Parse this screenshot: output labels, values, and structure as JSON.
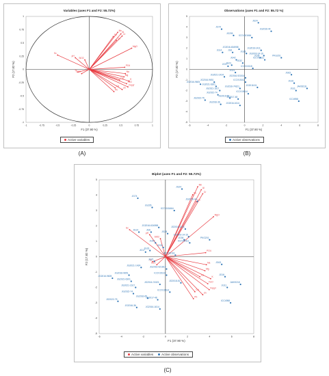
{
  "captions": [
    "(A)",
    "(B)",
    "(C)"
  ],
  "legend": {
    "active_variables": "Active variables",
    "active_observations": "Active observations"
  },
  "colors": {
    "variables": "#e8393f",
    "observations": "#2e75b6",
    "axis": "#333333",
    "circle": "#333333"
  },
  "chart_data": [
    {
      "type": "scatter",
      "panel": "A",
      "title": "Variables (axes F1 and F2: 55.72%)",
      "xlabel": "F1 (37.90 %)",
      "ylabel": "F2 (17.82 %)",
      "xlim": [
        -1,
        1
      ],
      "ylim": [
        -1,
        1
      ],
      "xticks": [
        "-1",
        "-0.75",
        "-0.5",
        "-0.25",
        "0",
        "0.25",
        "0.5",
        "0.75",
        "1"
      ],
      "yticks": [
        "1",
        "0.75",
        "0.5",
        "0.25",
        "0",
        "-0.25",
        "-0.5",
        "-0.75",
        "-1"
      ],
      "correlation_circle": true,
      "vectors": [
        {
          "name": "Sc",
          "x": -0.5,
          "y": 0.27
        },
        {
          "name": "pH",
          "x": -0.22,
          "y": 0.22
        },
        {
          "name": "Fe",
          "x": 0.38,
          "y": 0.62
        },
        {
          "name": "Mn",
          "x": 0.45,
          "y": 0.7
        },
        {
          "name": "Al",
          "x": 0.5,
          "y": 0.67
        },
        {
          "name": "Cr",
          "x": 0.52,
          "y": 0.63
        },
        {
          "name": "Cu",
          "x": 0.43,
          "y": 0.55
        },
        {
          "name": "MgO",
          "x": 0.67,
          "y": 0.4
        },
        {
          "name": "SiO2",
          "x": -0.07,
          "y": 0.18
        },
        {
          "name": "Si",
          "x": -0.18,
          "y": -0.05
        },
        {
          "name": "CEC",
          "x": -0.12,
          "y": -0.08
        },
        {
          "name": "PO4",
          "x": 0.56,
          "y": 0.04
        },
        {
          "name": "Na",
          "x": 0.57,
          "y": -0.08
        },
        {
          "name": "Mg",
          "x": 0.55,
          "y": -0.14
        },
        {
          "name": "Ca",
          "x": 0.48,
          "y": -0.2
        },
        {
          "name": "K",
          "x": 0.63,
          "y": -0.22
        },
        {
          "name": "FeO",
          "x": 0.59,
          "y": -0.27
        },
        {
          "name": "Fepyr",
          "x": 0.61,
          "y": -0.33
        },
        {
          "name": "Zn",
          "x": 0.52,
          "y": -0.38
        },
        {
          "name": "Cd",
          "x": 0.41,
          "y": -0.35
        },
        {
          "name": "Pb",
          "x": 0.39,
          "y": -0.42
        }
      ],
      "legend": [
        "Active variables"
      ]
    },
    {
      "type": "scatter",
      "panel": "B",
      "title": "Observations (axes F1 and F2: 55.72 %)",
      "xlabel": "F1 (37.90 %)",
      "ylabel": "F2 (17.82 %)",
      "xlim": [
        -6,
        8
      ],
      "ylim": [
        -5,
        5
      ],
      "xticks": [
        "-6",
        "-4",
        "-2",
        "0",
        "2",
        "4",
        "6",
        "8"
      ],
      "yticks": [
        "5",
        "4",
        "3",
        "2",
        "1",
        "0",
        "-1",
        "-2",
        "-3",
        "-4",
        "-5"
      ],
      "points": [
        {
          "name": "JG74",
          "x": -2.5,
          "y": 3.8
        },
        {
          "name": "JG24",
          "x": 1.5,
          "y": 4.4
        },
        {
          "name": "JG2016-44",
          "x": 2.9,
          "y": 3.6
        },
        {
          "name": "JG205",
          "x": -1.2,
          "y": 3.2
        },
        {
          "name": "ICCV181664",
          "x": 0.8,
          "y": 3.0
        },
        {
          "name": "JG2016-634958",
          "x": -0.6,
          "y": 1.9
        },
        {
          "name": "JG14",
          "x": -2.4,
          "y": 1.6
        },
        {
          "name": "JG6",
          "x": -1.3,
          "y": 1.6
        },
        {
          "name": "JG2016-1411",
          "x": 1.8,
          "y": 1.8
        },
        {
          "name": "JG28",
          "x": 0.2,
          "y": 1.5
        },
        {
          "name": "JG2003-14-16",
          "x": 2.1,
          "y": 1.3
        },
        {
          "name": "JG36",
          "x": 1.7,
          "y": 1.1
        },
        {
          "name": "JG42",
          "x": -0.9,
          "y": 0.9
        },
        {
          "name": "ICCV15111",
          "x": 2.2,
          "y": 0.9
        },
        {
          "name": "JG32",
          "x": -0.2,
          "y": 0.6
        },
        {
          "name": "ICCV15118",
          "x": 0.9,
          "y": 0.1
        },
        {
          "name": "PKG201",
          "x": 4.0,
          "y": 1.1
        },
        {
          "name": "JG17",
          "x": -1.8,
          "y": 0.3
        },
        {
          "name": "JG23",
          "x": -1.4,
          "y": 0.4
        },
        {
          "name": "JG21",
          "x": -1.0,
          "y": -0.3
        },
        {
          "name": "JG2021-1424",
          "x": -2.2,
          "y": -0.7
        },
        {
          "name": "JG2016-921814",
          "x": 0.1,
          "y": -0.8
        },
        {
          "name": "JG2016-9605",
          "x": -4.8,
          "y": -1.4
        },
        {
          "name": "JG2016-9651",
          "x": -3.3,
          "y": -1.2
        },
        {
          "name": "ICCV15102",
          "x": 0.1,
          "y": -1.2
        },
        {
          "name": "JG2021-6301",
          "x": -3.1,
          "y": -1.6
        },
        {
          "name": "JG2016-74321",
          "x": -0.5,
          "y": -1.8
        },
        {
          "name": "JG2018-51",
          "x": 1.4,
          "y": -1.7
        },
        {
          "name": "JG2021-1617",
          "x": -2.7,
          "y": -2.0
        },
        {
          "name": "ICCV19614",
          "x": 0.4,
          "y": -2.3
        },
        {
          "name": "JG2022-74",
          "x": -2.9,
          "y": -2.4
        },
        {
          "name": "JG2016-65",
          "x": -1.6,
          "y": -2.7
        },
        {
          "name": "JG2017-48",
          "x": -0.7,
          "y": -2.8
        },
        {
          "name": "JG2022-75",
          "x": -4.3,
          "y": -2.9
        },
        {
          "name": "JG2016-36",
          "x": -2.6,
          "y": -3.3
        },
        {
          "name": "JG2016-1614",
          "x": -0.5,
          "y": -3.4
        },
        {
          "name": "JG63",
          "x": 5.1,
          "y": -0.5
        },
        {
          "name": "JG16",
          "x": 5.4,
          "y": -1.3
        },
        {
          "name": "JG11",
          "x": 5.6,
          "y": -2.0
        },
        {
          "name": "JAKI9218",
          "x": 6.8,
          "y": -1.8
        },
        {
          "name": "ICC4958",
          "x": 5.9,
          "y": -3.0
        }
      ],
      "legend": [
        "Active observations"
      ]
    },
    {
      "type": "scatter",
      "panel": "C",
      "title": "Biplot (axes F1 and F2: 55.72%)",
      "xlabel": "F1 (37.90 %)",
      "ylabel": "F2 (17.82 %)",
      "xlim": [
        -6,
        8
      ],
      "ylim": [
        -5,
        5
      ],
      "xticks": [
        "-6",
        "-4",
        "-2",
        "0",
        "2",
        "4",
        "6",
        "8"
      ],
      "yticks": [
        "5",
        "4",
        "3",
        "2",
        "1",
        "0",
        "-1",
        "-2",
        "-3",
        "-4",
        "-5"
      ],
      "vector_scale": 6.5,
      "legend": [
        "Active variables",
        "Active observations"
      ]
    }
  ]
}
